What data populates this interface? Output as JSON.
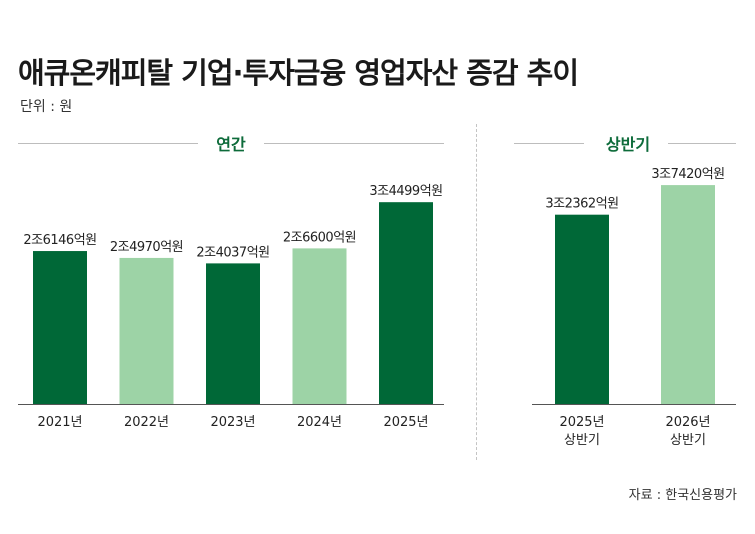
{
  "title": "애큐온캐피탈 기업·투자금융 영업자산 증감 추이",
  "unit": "단위 : 원",
  "source": "자료 : 한국신용평가",
  "colors": {
    "dark": "#006837",
    "light": "#9dd3a6",
    "accent": "#0d6b3a"
  },
  "chart_data": [
    {
      "type": "bar",
      "title": "연간",
      "categories": [
        "2021년",
        "2022년",
        "2023년",
        "2024년",
        "2025년"
      ],
      "values": [
        26146,
        24970,
        24037,
        26600,
        34499
      ],
      "value_labels": [
        "2조6146억원",
        "2조4970억원",
        "2조4037억원",
        "2조6600억원",
        "3조4499억원"
      ],
      "bar_shades": [
        "dark",
        "light",
        "dark",
        "light",
        "dark"
      ],
      "ylim": [
        0,
        40000
      ],
      "grid": false,
      "legend": "none"
    },
    {
      "type": "bar",
      "title": "상반기",
      "categories": [
        [
          "2025년",
          "상반기"
        ],
        [
          "2026년",
          "상반기"
        ]
      ],
      "values": [
        32362,
        37420
      ],
      "value_labels": [
        "3조2362억원",
        "3조7420억원"
      ],
      "bar_shades": [
        "dark",
        "light"
      ],
      "ylim": [
        0,
        40000
      ],
      "grid": false,
      "legend": "none"
    }
  ]
}
